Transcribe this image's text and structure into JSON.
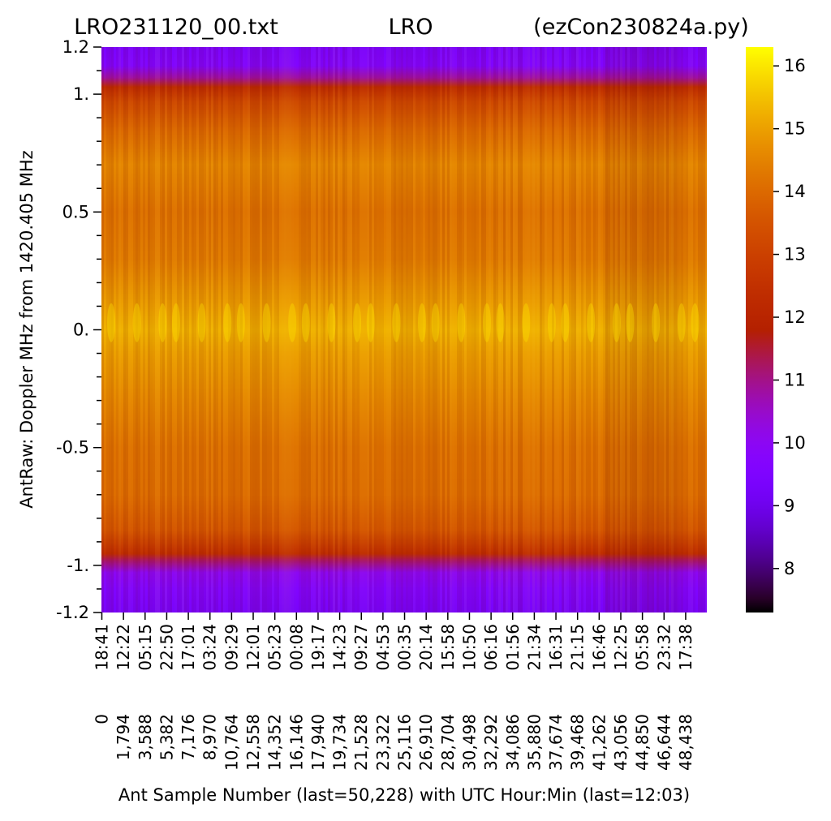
{
  "chart_data": {
    "type": "heatmap",
    "title_parts": [
      "LRO231120_00.txt",
      "LRO",
      "(ezCon230824a.py)"
    ],
    "ylabel": "AntRaw:  Doppler MHz from 1420.405 MHz",
    "xlabel": "Ant Sample Number (last=50,228) with UTC Hour:Min (last=12:03)",
    "ylim": [
      -1.2,
      1.2
    ],
    "xlim": [
      0,
      50228
    ],
    "y_ticks": [
      {
        "value": 1.2,
        "label": "1.2"
      },
      {
        "value": 1.0,
        "label": "1."
      },
      {
        "value": 0.5,
        "label": "0.5"
      },
      {
        "value": 0.0,
        "label": "0."
      },
      {
        "value": -0.5,
        "label": "-0.5"
      },
      {
        "value": -1.0,
        "label": "-1."
      },
      {
        "value": -1.2,
        "label": "-1.2"
      }
    ],
    "y_minor_step": 0.1,
    "x_tick_samples": [
      "0",
      "1,794",
      "3,588",
      "5,382",
      "7,176",
      "8,970",
      "10,764",
      "12,558",
      "14,352",
      "16,146",
      "17,940",
      "19,734",
      "21,528",
      "23,322",
      "25,116",
      "26,910",
      "28,704",
      "30,498",
      "32,292",
      "34,086",
      "35,880",
      "37,674",
      "39,468",
      "41,262",
      "43,056",
      "44,850",
      "46,644",
      "48,438"
    ],
    "x_tick_times": [
      "18:41",
      "12:22",
      "05:15",
      "22:50",
      "17:01",
      "03:24",
      "09:29",
      "12:01",
      "05:23",
      "00:08",
      "19:17",
      "14:23",
      "09:27",
      "04:53",
      "00:35",
      "20:14",
      "15:58",
      "10:50",
      "06:16",
      "01:56",
      "21:34",
      "16:31",
      "21:15",
      "16:46",
      "12:25",
      "05:58",
      "23:32",
      "17:38"
    ],
    "colorbar": {
      "min": 7.3,
      "max": 16.3,
      "ticks": [
        "8",
        "9",
        "10",
        "11",
        "12",
        "13",
        "14",
        "15",
        "16"
      ],
      "colormap": "gnuplot"
    },
    "spectrum_profile": [
      {
        "mhz": -1.2,
        "value": 9.3
      },
      {
        "mhz": -1.1,
        "value": 9.6
      },
      {
        "mhz": -1.03,
        "value": 10.0
      },
      {
        "mhz": -0.98,
        "value": 11.2
      },
      {
        "mhz": -0.95,
        "value": 12.4
      },
      {
        "mhz": -0.85,
        "value": 13.6
      },
      {
        "mhz": -0.7,
        "value": 14.1
      },
      {
        "mhz": -0.5,
        "value": 14.2
      },
      {
        "mhz": -0.3,
        "value": 14.6
      },
      {
        "mhz": -0.1,
        "value": 15.0
      },
      {
        "mhz": 0.0,
        "value": 15.3
      },
      {
        "mhz": 0.1,
        "value": 15.0
      },
      {
        "mhz": 0.3,
        "value": 14.4
      },
      {
        "mhz": 0.5,
        "value": 14.2
      },
      {
        "mhz": 0.7,
        "value": 14.6
      },
      {
        "mhz": 0.85,
        "value": 14.0
      },
      {
        "mhz": 0.97,
        "value": 13.2
      },
      {
        "mhz": 1.03,
        "value": 12.3
      },
      {
        "mhz": 1.07,
        "value": 10.8
      },
      {
        "mhz": 1.12,
        "value": 9.6
      },
      {
        "mhz": 1.2,
        "value": 9.4
      }
    ]
  }
}
